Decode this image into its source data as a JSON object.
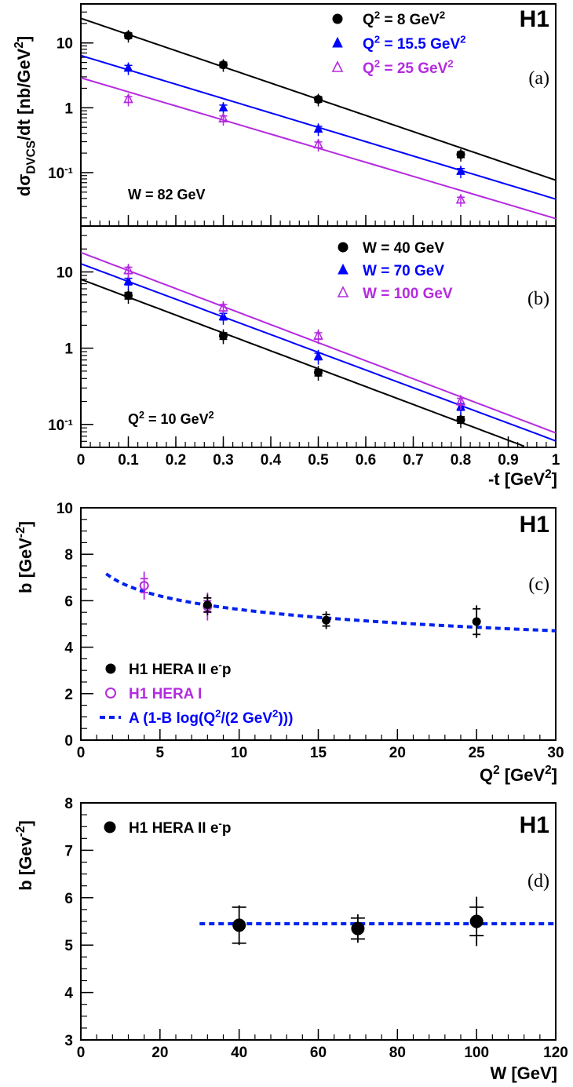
{
  "chart_data": [
    {
      "panel": "(a)",
      "type": "scatter",
      "logo": "H1",
      "annotation": "W = 82 GeV",
      "ylabel": "dσ_DVCS/dt [nb/GeV²]",
      "y_scale": "log",
      "ylim": [
        0.015,
        40
      ],
      "xlim": [
        0,
        1
      ],
      "y_tick_labels": [
        "10",
        "1",
        "10⁻¹"
      ],
      "legend_position": "top-right",
      "series": [
        {
          "name": "Q² = 8 GeV²",
          "color": "#000000",
          "marker": "circle",
          "x": [
            0.1,
            0.3,
            0.5,
            0.8
          ],
          "y": [
            13.0,
            4.6,
            1.35,
            0.19
          ],
          "fit": {
            "A": 24.0,
            "b": 5.75
          }
        },
        {
          "name": "Q² = 15.5 GeV²",
          "color": "#0000ff",
          "marker": "triangle",
          "x": [
            0.1,
            0.3,
            0.5,
            0.8
          ],
          "y": [
            4.1,
            1.0,
            0.47,
            0.105
          ],
          "fit": {
            "A": 6.4,
            "b": 5.1
          }
        },
        {
          "name": "Q² = 25 GeV²",
          "color": "#b52be0",
          "marker": "triangle-open",
          "x": [
            0.1,
            0.3,
            0.5,
            0.8
          ],
          "y": [
            1.35,
            0.68,
            0.27,
            0.038
          ],
          "fit": {
            "A": 2.9,
            "b": 5.0
          }
        }
      ]
    },
    {
      "panel": "(b)",
      "type": "scatter",
      "annotation": "Q² = 10 GeV²",
      "y_scale": "log",
      "ylim": [
        0.05,
        40
      ],
      "xlim": [
        0,
        1
      ],
      "xlabel": "-t [GeV²]",
      "x_ticks": [
        0,
        0.1,
        0.2,
        0.3,
        0.4,
        0.5,
        0.6,
        0.7,
        0.8,
        0.9,
        1
      ],
      "x_tick_labels": [
        "0",
        "0.1",
        "0.2",
        "0.3",
        "0.4",
        "0.5",
        "0.6",
        "0.7",
        "0.8",
        "0.9",
        "1"
      ],
      "y_tick_labels": [
        "10",
        "1",
        "10⁻¹"
      ],
      "legend_position": "top-right",
      "series": [
        {
          "name": "W = 40 GeV",
          "color": "#000000",
          "marker": "circle",
          "x": [
            0.1,
            0.3,
            0.5,
            0.8
          ],
          "y": [
            4.9,
            1.45,
            0.48,
            0.115
          ],
          "fit": {
            "A": 8.0,
            "b": 5.4
          }
        },
        {
          "name": "W = 70 GeV",
          "color": "#0000ff",
          "marker": "triangle",
          "x": [
            0.1,
            0.3,
            0.5,
            0.8
          ],
          "y": [
            7.5,
            2.6,
            0.78,
            0.17
          ],
          "fit": {
            "A": 12.8,
            "b": 5.35
          }
        },
        {
          "name": "W = 100 GeV",
          "color": "#b52be0",
          "marker": "triangle-open",
          "x": [
            0.1,
            0.3,
            0.5,
            0.8
          ],
          "y": [
            10.5,
            3.4,
            1.45,
            0.2
          ],
          "fit": {
            "A": 18.0,
            "b": 5.45
          }
        }
      ]
    },
    {
      "panel": "(c)",
      "type": "scatter",
      "logo": "H1",
      "ylabel": "b [GeV⁻²]",
      "xlabel": "Q² [GeV²]",
      "xlim": [
        0,
        30
      ],
      "ylim": [
        0,
        10
      ],
      "x_ticks": [
        0,
        5,
        10,
        15,
        20,
        25,
        30
      ],
      "y_ticks": [
        0,
        2,
        4,
        6,
        8,
        10
      ],
      "legend_position": "bottom-left",
      "series": [
        {
          "name": "H1 HERA II e⁻p",
          "color": "#000000",
          "marker": "circle",
          "x": [
            8.0,
            15.5,
            25.0
          ],
          "y": [
            5.82,
            5.16,
            5.1
          ],
          "err_inner": [
            0.3,
            0.25,
            0.55
          ],
          "err_outer": [
            0.45,
            0.38,
            0.7
          ]
        },
        {
          "name": "H1 HERA I",
          "color": "#b52be0",
          "marker": "circle-open",
          "x": [
            4.0,
            8.0
          ],
          "y": [
            6.65,
            5.75
          ],
          "err_inner": [
            0.3,
            0.25
          ],
          "err_outer": [
            0.6,
            0.6
          ]
        },
        {
          "name": "A (1-B log(Q²/(2 GeV²)))",
          "color": "#0022ee",
          "style": "dashed",
          "x_range": [
            1.6,
            30
          ],
          "fit": {
            "A": 6.97,
            "B": 0.12
          }
        }
      ]
    },
    {
      "panel": "(d)",
      "type": "scatter",
      "logo": "H1",
      "ylabel": "b [Gev⁻²]",
      "xlabel": "W [GeV]",
      "xlim": [
        0,
        120
      ],
      "ylim": [
        3,
        8
      ],
      "x_ticks": [
        0,
        20,
        40,
        60,
        80,
        100,
        120
      ],
      "y_ticks": [
        3,
        4,
        5,
        6,
        7,
        8
      ],
      "legend_position": "top-left",
      "series": [
        {
          "name": "H1 HERA II e⁻p",
          "color": "#000000",
          "marker": "circle",
          "x": [
            40,
            70,
            100
          ],
          "y": [
            5.42,
            5.35,
            5.5
          ],
          "err_inner": [
            0.38,
            0.22,
            0.3
          ],
          "err_outer": [
            0.42,
            0.3,
            0.52
          ]
        },
        {
          "name": "",
          "color": "#0022ee",
          "style": "dashed",
          "x_range": [
            30,
            120
          ],
          "y_const": 5.45
        }
      ]
    }
  ]
}
